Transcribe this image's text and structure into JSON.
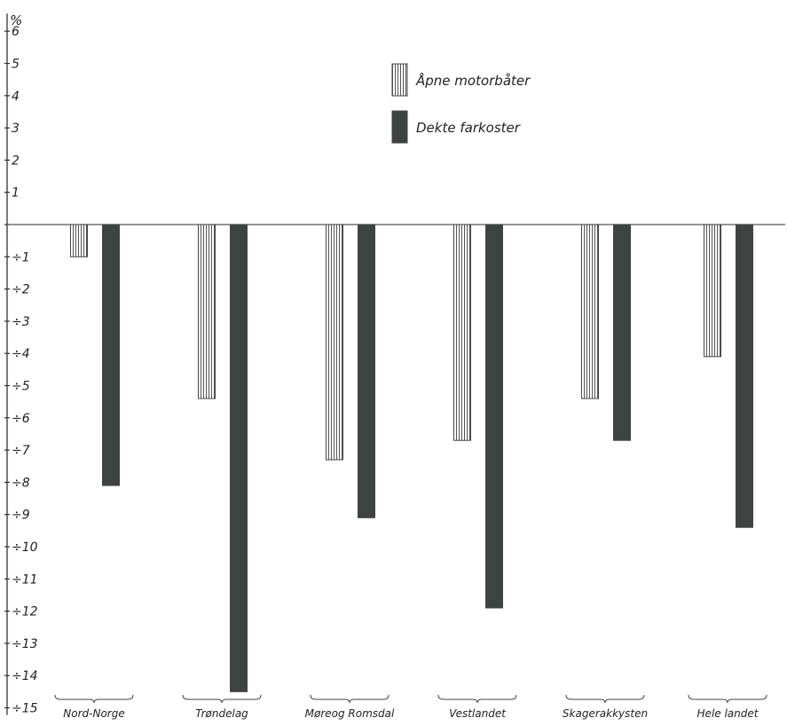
{
  "chart_data": {
    "type": "bar",
    "unit_label": "%",
    "ylim": [
      -15,
      6
    ],
    "y_ticks": [
      6,
      5,
      4,
      3,
      2,
      1,
      0,
      -1,
      -2,
      -3,
      -4,
      -5,
      -6,
      -7,
      -8,
      -9,
      -10,
      -11,
      -12,
      -13,
      -14,
      -15
    ],
    "y_tick_labels": [
      "6",
      "5",
      "4",
      "3",
      "2",
      "1",
      "",
      "÷1",
      "÷2",
      "÷3",
      "÷4",
      "÷5",
      "÷6",
      "÷7",
      "÷8",
      "÷9",
      "÷10",
      "÷11",
      "÷12",
      "÷13",
      "÷14",
      "÷15"
    ],
    "categories": [
      "Nord-Norge",
      "Trøndelag",
      "Møreog Romsdal",
      "Vestlandet",
      "Skagerakkysten",
      "Hele landet"
    ],
    "series": [
      {
        "name": "Åpne motorbåter",
        "pattern": "vertical-hatch",
        "values": [
          -1.0,
          -5.4,
          -7.3,
          -6.7,
          -5.4,
          -4.1
        ]
      },
      {
        "name": "Dekte farkoster",
        "pattern": "solid-dark",
        "values": [
          -8.1,
          -14.5,
          -9.1,
          -11.9,
          -6.7,
          -9.4
        ]
      }
    ],
    "legend_position": "top-center",
    "grid": false
  },
  "colors": {
    "dark_fill": "#3e4240",
    "hatch_line": "#555555",
    "axis": "#333333",
    "zero_line": "#555555"
  }
}
